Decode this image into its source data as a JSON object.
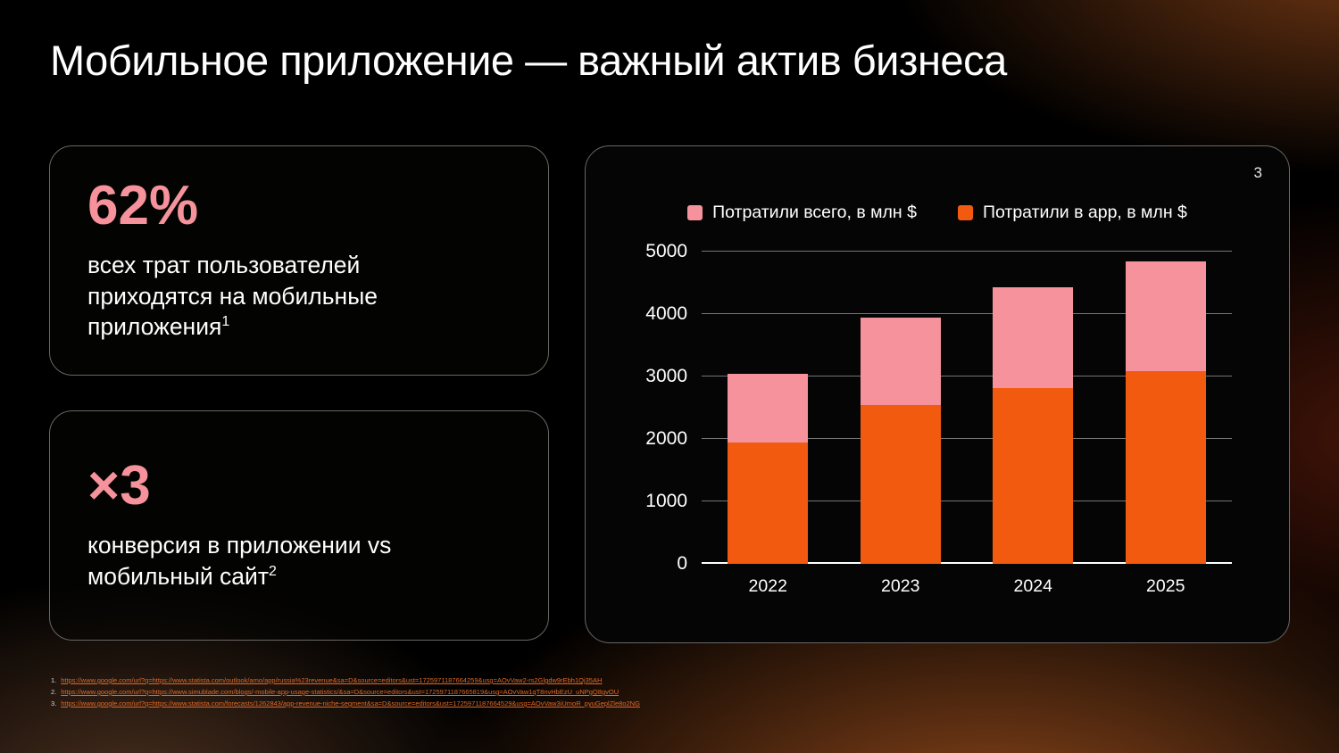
{
  "slide": {
    "title": "Мобильное приложение — важный актив бизнеса",
    "page_number": "3"
  },
  "colors": {
    "pink": "#F5929B",
    "orange": "#F15A0F",
    "background": "#000000",
    "card_border": "#6a6763",
    "footnote_link": "#e06a28"
  },
  "cards": [
    {
      "stat": "62%",
      "text": "всех трат пользователей приходятся на мобильные приложения",
      "sup": "1"
    },
    {
      "stat": "×3",
      "text": "конверсия в приложении vs мобильный сайт",
      "sup": "2"
    }
  ],
  "chart_data": {
    "type": "bar",
    "stacked": true,
    "title": "",
    "categories": [
      "2022",
      "2023",
      "2024",
      "2025"
    ],
    "series": [
      {
        "name": "Потратили всего, в млн $",
        "color": "#F5929B",
        "values": [
          3050,
          3950,
          4430,
          4840
        ]
      },
      {
        "name": "Потратили в app, в млн $",
        "color": "#F15A0F",
        "values": [
          1950,
          2550,
          2820,
          3080
        ]
      }
    ],
    "ylim": [
      0,
      5000
    ],
    "yticks": [
      0,
      1000,
      2000,
      3000,
      4000,
      5000
    ],
    "grid": true,
    "legend_position": "top",
    "note": "'Потратили всего' is the full bar height (pink); 'Потратили в app' is the orange lower portion of each bar"
  },
  "footnotes": [
    {
      "marker": "1.",
      "url": "https://www.google.com/url?q=https://www.statista.com/outlook/amo/app/russia%23revenue&sa=D&source=editors&ust=1725971187664259&usg=AOvVaw2-rs2Glgdw9rEbh1Qj35AH"
    },
    {
      "marker": "2.",
      "url": "https://www.google.com/url?q=https://www.simublade.com/blogs/-mobile-app-usage-statistics/&sa=D&source=editors&ust=1725971187665819&usg=AOvVaw1qT8nvHbEzU_uNPgQ8gvOU"
    },
    {
      "marker": "3.",
      "url": "https://www.google.com/url?q=https://www.statista.com/forecasts/1262843/app-revenue-niche-segment&sa=D&source=editors&ust=1725971187664529&usg=AOvVaw3iUmoR_pyuGeplZle8o2NG"
    }
  ]
}
